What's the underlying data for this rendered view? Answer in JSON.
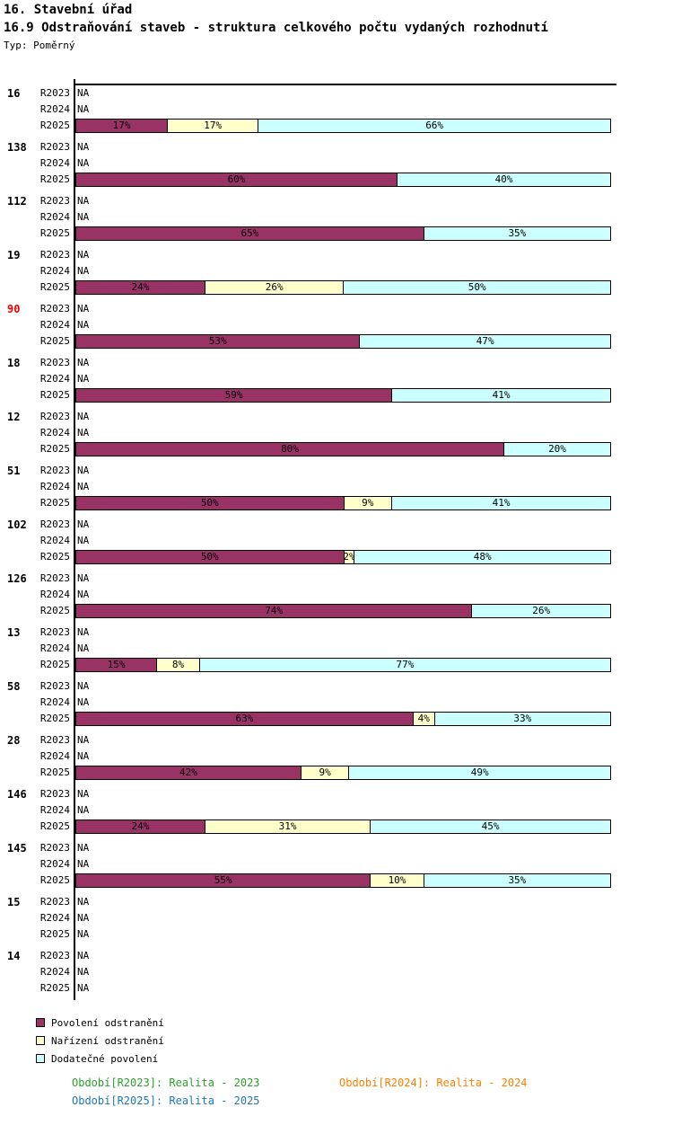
{
  "title": "16. Stavební úřad",
  "subtitle": "16.9 Odstraňování staveb - struktura celkového počtu vydaných rozhodnutí",
  "type_label": "Typ: Poměrný",
  "colors": {
    "povoleni_odstraneni": "#993366",
    "narizeni_odstraneni": "#FFFFCC",
    "dodatecne_povoleni": "#CCFFFF",
    "highlighted_group_label": "#EE0000",
    "footer_r2023": "#2CA02C",
    "footer_r2024": "#FF8000",
    "footer_r2025": "#1F77B4",
    "axis": "#000000"
  },
  "chart_data": {
    "type": "bar",
    "orientation": "horizontal-stacked",
    "unit": "%",
    "xlim": [
      0,
      100
    ],
    "na_text": "NA",
    "series_names": [
      "Povolení odstranění",
      "Nařízení odstranění",
      "Dodatečné povolení"
    ],
    "series_keys": [
      "povoleni-odstraneni",
      "narizeni-odstraneni",
      "dodatecne-povoleni"
    ],
    "series_colors": [
      "#993366",
      "#FFFFCC",
      "#CCFFFF"
    ],
    "groups": [
      {
        "label": "16",
        "highlight": false,
        "rows": [
          {
            "period": "R2023",
            "value": "NA"
          },
          {
            "period": "R2024",
            "value": "NA"
          },
          {
            "period": "R2025",
            "segments": [
              17,
              17,
              66
            ]
          }
        ]
      },
      {
        "label": "138",
        "highlight": false,
        "rows": [
          {
            "period": "R2023",
            "value": "NA"
          },
          {
            "period": "R2024",
            "value": "NA"
          },
          {
            "period": "R2025",
            "segments": [
              60,
              0,
              40
            ]
          }
        ]
      },
      {
        "label": "112",
        "highlight": false,
        "rows": [
          {
            "period": "R2023",
            "value": "NA"
          },
          {
            "period": "R2024",
            "value": "NA"
          },
          {
            "period": "R2025",
            "segments": [
              65,
              0,
              35
            ]
          }
        ]
      },
      {
        "label": "19",
        "highlight": false,
        "rows": [
          {
            "period": "R2023",
            "value": "NA"
          },
          {
            "period": "R2024",
            "value": "NA"
          },
          {
            "period": "R2025",
            "segments": [
              24,
              26,
              50
            ]
          }
        ]
      },
      {
        "label": "90",
        "highlight": true,
        "rows": [
          {
            "period": "R2023",
            "value": "NA"
          },
          {
            "period": "R2024",
            "value": "NA"
          },
          {
            "period": "R2025",
            "segments": [
              53,
              0,
              47
            ]
          }
        ]
      },
      {
        "label": "18",
        "highlight": false,
        "rows": [
          {
            "period": "R2023",
            "value": "NA"
          },
          {
            "period": "R2024",
            "value": "NA"
          },
          {
            "period": "R2025",
            "segments": [
              59,
              0,
              41
            ]
          }
        ]
      },
      {
        "label": "12",
        "highlight": false,
        "rows": [
          {
            "period": "R2023",
            "value": "NA"
          },
          {
            "period": "R2024",
            "value": "NA"
          },
          {
            "period": "R2025",
            "segments": [
              80,
              0,
              20
            ]
          }
        ]
      },
      {
        "label": "51",
        "highlight": false,
        "rows": [
          {
            "period": "R2023",
            "value": "NA"
          },
          {
            "period": "R2024",
            "value": "NA"
          },
          {
            "period": "R2025",
            "segments": [
              50,
              9,
              41
            ]
          }
        ]
      },
      {
        "label": "102",
        "highlight": false,
        "rows": [
          {
            "period": "R2023",
            "value": "NA"
          },
          {
            "period": "R2024",
            "value": "NA"
          },
          {
            "period": "R2025",
            "segments": [
              50,
              2,
              48
            ]
          }
        ]
      },
      {
        "label": "126",
        "highlight": false,
        "rows": [
          {
            "period": "R2023",
            "value": "NA"
          },
          {
            "period": "R2024",
            "value": "NA"
          },
          {
            "period": "R2025",
            "segments": [
              74,
              0,
              26
            ]
          }
        ]
      },
      {
        "label": "13",
        "highlight": false,
        "rows": [
          {
            "period": "R2023",
            "value": "NA"
          },
          {
            "period": "R2024",
            "value": "NA"
          },
          {
            "period": "R2025",
            "segments": [
              15,
              8,
              77
            ]
          }
        ]
      },
      {
        "label": "58",
        "highlight": false,
        "rows": [
          {
            "period": "R2023",
            "value": "NA"
          },
          {
            "period": "R2024",
            "value": "NA"
          },
          {
            "period": "R2025",
            "segments": [
              63,
              4,
              33
            ]
          }
        ]
      },
      {
        "label": "28",
        "highlight": false,
        "rows": [
          {
            "period": "R2023",
            "value": "NA"
          },
          {
            "period": "R2024",
            "value": "NA"
          },
          {
            "period": "R2025",
            "segments": [
              42,
              9,
              49
            ]
          }
        ]
      },
      {
        "label": "146",
        "highlight": false,
        "rows": [
          {
            "period": "R2023",
            "value": "NA"
          },
          {
            "period": "R2024",
            "value": "NA"
          },
          {
            "period": "R2025",
            "segments": [
              24,
              31,
              45
            ]
          }
        ]
      },
      {
        "label": "145",
        "highlight": false,
        "rows": [
          {
            "period": "R2023",
            "value": "NA"
          },
          {
            "period": "R2024",
            "value": "NA"
          },
          {
            "period": "R2025",
            "segments": [
              55,
              10,
              35
            ]
          }
        ]
      },
      {
        "label": "15",
        "highlight": false,
        "rows": [
          {
            "period": "R2023",
            "value": "NA"
          },
          {
            "period": "R2024",
            "value": "NA"
          },
          {
            "period": "R2025",
            "value": "NA"
          }
        ]
      },
      {
        "label": "14",
        "highlight": false,
        "rows": [
          {
            "period": "R2023",
            "value": "NA"
          },
          {
            "period": "R2024",
            "value": "NA"
          },
          {
            "period": "R2025",
            "value": "NA"
          }
        ]
      }
    ]
  },
  "legend": [
    {
      "label": "Povolení odstranění",
      "color": "#993366"
    },
    {
      "label": "Nařízení odstranění",
      "color": "#FFFFCC"
    },
    {
      "label": "Dodatečné povolení",
      "color": "#CCFFFF"
    }
  ],
  "footer": [
    {
      "text": "Období[R2023]: Realita - 2023",
      "color": "#2CA02C"
    },
    {
      "text": "Období[R2024]: Realita - 2024",
      "color": "#FF8000"
    },
    {
      "text": "Období[R2025]: Realita - 2025",
      "color": "#1F77B4"
    }
  ]
}
